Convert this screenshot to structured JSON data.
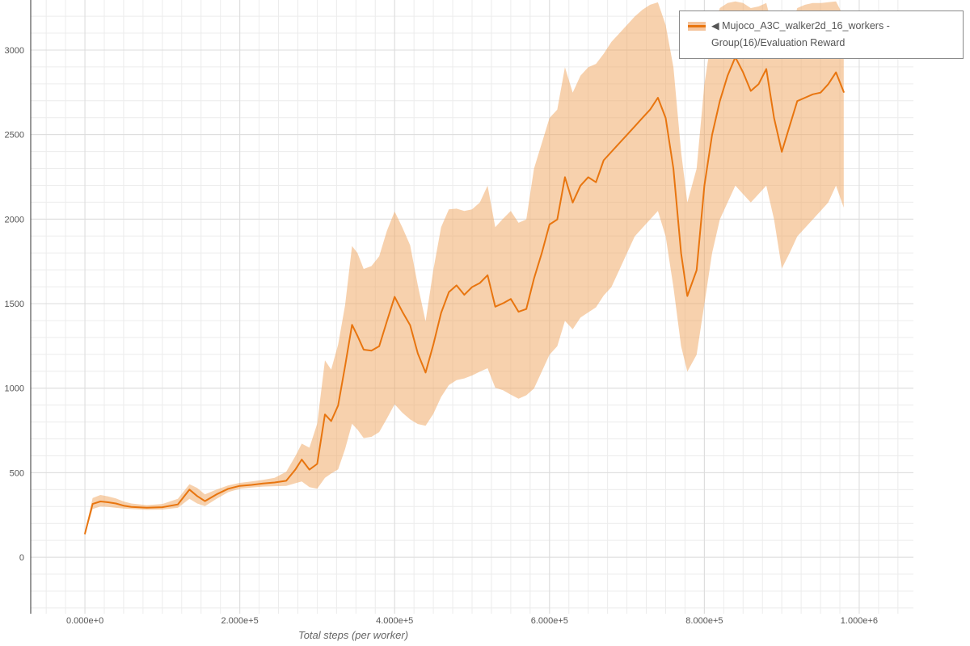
{
  "legend": {
    "marker": "◀",
    "label": "Mujoco_A3C_walker2d_16_workers - Group(16)/Evaluation Reward"
  },
  "colors": {
    "line": "#e8750f",
    "band": "#f0a35c",
    "band_opacity": 0.5,
    "grid_minor": "#ececec",
    "grid_major": "#dcdcdc",
    "axis_spine": "#333333",
    "tick_text": "#555555",
    "axis_title": "#666666",
    "background": "#ffffff"
  },
  "chart_data": {
    "type": "line",
    "title": "",
    "xlabel": "Total steps (per worker)",
    "ylabel": "",
    "grid": true,
    "legend_position": "top-right",
    "xlim": [
      -70000,
      1070000
    ],
    "ylim": [
      -334,
      3296
    ],
    "x_tick_values": [
      0,
      200000,
      400000,
      600000,
      800000,
      1000000
    ],
    "x_tick_labels": [
      "0.000e+0",
      "2.000e+5",
      "4.000e+5",
      "6.000e+5",
      "8.000e+5",
      "1.000e+6"
    ],
    "y_tick_values": [
      0,
      500,
      1000,
      1500,
      2000,
      2500,
      3000
    ],
    "minor_grid_step_x": 25000,
    "minor_grid_step_y": 100,
    "series": [
      {
        "name": "Mujoco_A3C_walker2d_16_workers - Group(16)/Evaluation Reward",
        "band": true,
        "x": [
          0,
          10000,
          20000,
          30000,
          40000,
          50000,
          60000,
          80000,
          100000,
          120000,
          135000,
          145000,
          155000,
          170000,
          185000,
          200000,
          215000,
          230000,
          245000,
          260000,
          272000,
          280000,
          290000,
          300000,
          310000,
          318000,
          327000,
          336000,
          345000,
          352000,
          360000,
          370000,
          380000,
          390000,
          400000,
          410000,
          420000,
          430000,
          440000,
          450000,
          460000,
          470000,
          480000,
          490000,
          500000,
          510000,
          520000,
          530000,
          540000,
          550000,
          560000,
          570000,
          580000,
          590000,
          600000,
          610000,
          620000,
          630000,
          640000,
          650000,
          660000,
          670000,
          680000,
          690000,
          700000,
          710000,
          720000,
          730000,
          740000,
          750000,
          760000,
          770000,
          778000,
          790000,
          800000,
          810000,
          820000,
          830000,
          840000,
          850000,
          860000,
          870000,
          880000,
          890000,
          900000,
          910000,
          920000,
          930000,
          940000,
          950000,
          960000,
          970000,
          980000
        ],
        "mean": [
          140,
          315,
          330,
          325,
          318,
          305,
          298,
          293,
          296,
          312,
          400,
          362,
          332,
          372,
          405,
          422,
          428,
          436,
          442,
          452,
          520,
          578,
          518,
          552,
          845,
          805,
          898,
          1130,
          1375,
          1310,
          1228,
          1222,
          1248,
          1395,
          1540,
          1452,
          1372,
          1205,
          1092,
          1258,
          1445,
          1568,
          1608,
          1552,
          1598,
          1622,
          1668,
          1482,
          1502,
          1528,
          1452,
          1468,
          1648,
          1798,
          1968,
          1998,
          2248,
          2098,
          2198,
          2248,
          2218,
          2348,
          2398,
          2448,
          2498,
          2548,
          2598,
          2648,
          2718,
          2598,
          2298,
          1798,
          1545,
          1698,
          2198,
          2498,
          2698,
          2848,
          2958,
          2868,
          2758,
          2798,
          2888,
          2598,
          2398,
          2548,
          2698,
          2718,
          2738,
          2748,
          2798,
          2868,
          2752
        ],
        "lower": [
          132,
          285,
          300,
          298,
          292,
          288,
          285,
          280,
          282,
          292,
          345,
          318,
          302,
          345,
          385,
          405,
          412,
          418,
          420,
          422,
          438,
          448,
          415,
          405,
          470,
          495,
          520,
          640,
          790,
          755,
          705,
          712,
          740,
          820,
          905,
          855,
          815,
          788,
          778,
          848,
          948,
          1018,
          1048,
          1058,
          1075,
          1098,
          1118,
          1002,
          988,
          962,
          938,
          958,
          998,
          1098,
          1198,
          1248,
          1398,
          1348,
          1418,
          1448,
          1478,
          1548,
          1598,
          1698,
          1798,
          1898,
          1948,
          1998,
          2048,
          1898,
          1598,
          1248,
          1098,
          1198,
          1498,
          1798,
          1998,
          2098,
          2198,
          2148,
          2098,
          2148,
          2198,
          1998,
          1708,
          1798,
          1898,
          1948,
          1998,
          2048,
          2098,
          2198,
          2068
        ],
        "upper": [
          150,
          350,
          368,
          360,
          348,
          330,
          318,
          308,
          315,
          345,
          432,
          410,
          372,
          400,
          425,
          440,
          448,
          458,
          470,
          505,
          600,
          672,
          648,
          790,
          1165,
          1110,
          1258,
          1490,
          1840,
          1800,
          1705,
          1722,
          1780,
          1930,
          2045,
          1950,
          1845,
          1608,
          1395,
          1700,
          1952,
          2058,
          2062,
          2048,
          2058,
          2098,
          2198,
          1952,
          2002,
          2048,
          1978,
          1998,
          2298,
          2448,
          2598,
          2648,
          2898,
          2748,
          2848,
          2898,
          2918,
          2978,
          3048,
          3098,
          3148,
          3198,
          3238,
          3268,
          3282,
          3148,
          2898,
          2398,
          2098,
          2298,
          2798,
          3098,
          3248,
          3278,
          3288,
          3278,
          3248,
          3258,
          3278,
          3098,
          2948,
          3098,
          3248,
          3268,
          3278,
          3278,
          3283,
          3288,
          3198
        ]
      }
    ]
  }
}
